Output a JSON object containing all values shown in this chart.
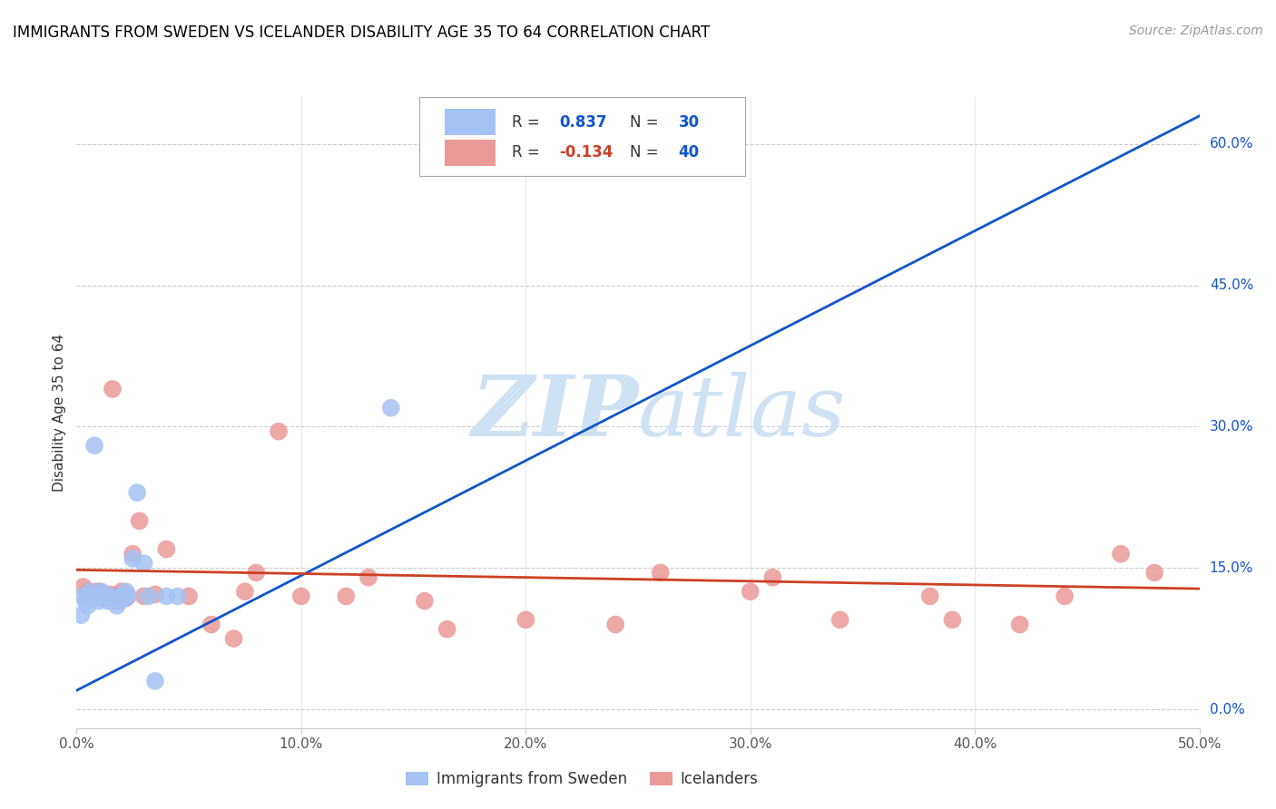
{
  "title": "IMMIGRANTS FROM SWEDEN VS ICELANDER DISABILITY AGE 35 TO 64 CORRELATION CHART",
  "source": "Source: ZipAtlas.com",
  "ylabel": "Disability Age 35 to 64",
  "xlim": [
    0.0,
    0.5
  ],
  "ylim": [
    -0.02,
    0.65
  ],
  "xticks": [
    0.0,
    0.1,
    0.2,
    0.3,
    0.4,
    0.5
  ],
  "xticklabels": [
    "0.0%",
    "10.0%",
    "20.0%",
    "30.0%",
    "40.0%",
    "50.0%"
  ],
  "yticks_right": [
    0.0,
    0.15,
    0.3,
    0.45,
    0.6
  ],
  "yticklabels_right": [
    "0.0%",
    "15.0%",
    "30.0%",
    "45.0%",
    "60.0%"
  ],
  "blue_R": 0.837,
  "blue_N": 30,
  "pink_R": -0.134,
  "pink_N": 40,
  "blue_color": "#a4c2f4",
  "pink_color": "#ea9999",
  "blue_line_color": "#1155cc",
  "pink_line_color": "#cc4125",
  "background_color": "#ffffff",
  "grid_color": "#cccccc",
  "title_color": "#000000",
  "source_color": "#999999",
  "watermark_zip": "ZIP",
  "watermark_atlas": "atlas",
  "watermark_color": "#cfe2f3",
  "blue_scatter_x": [
    0.002,
    0.003,
    0.004,
    0.005,
    0.006,
    0.007,
    0.008,
    0.009,
    0.01,
    0.011,
    0.012,
    0.013,
    0.014,
    0.015,
    0.016,
    0.017,
    0.018,
    0.019,
    0.02,
    0.021,
    0.022,
    0.023,
    0.025,
    0.027,
    0.03,
    0.032,
    0.035,
    0.04,
    0.045,
    0.14
  ],
  "blue_scatter_y": [
    0.1,
    0.12,
    0.115,
    0.11,
    0.125,
    0.12,
    0.28,
    0.12,
    0.115,
    0.125,
    0.12,
    0.118,
    0.115,
    0.12,
    0.118,
    0.115,
    0.11,
    0.115,
    0.12,
    0.118,
    0.125,
    0.12,
    0.16,
    0.23,
    0.155,
    0.12,
    0.03,
    0.12,
    0.12,
    0.32
  ],
  "pink_scatter_x": [
    0.003,
    0.005,
    0.007,
    0.008,
    0.01,
    0.012,
    0.013,
    0.015,
    0.016,
    0.018,
    0.02,
    0.022,
    0.025,
    0.028,
    0.03,
    0.035,
    0.04,
    0.05,
    0.06,
    0.07,
    0.075,
    0.08,
    0.09,
    0.1,
    0.12,
    0.13,
    0.155,
    0.165,
    0.2,
    0.24,
    0.26,
    0.3,
    0.31,
    0.34,
    0.38,
    0.39,
    0.42,
    0.44,
    0.465,
    0.48
  ],
  "pink_scatter_y": [
    0.13,
    0.125,
    0.12,
    0.125,
    0.125,
    0.118,
    0.12,
    0.122,
    0.34,
    0.12,
    0.125,
    0.118,
    0.165,
    0.2,
    0.12,
    0.122,
    0.17,
    0.12,
    0.09,
    0.075,
    0.125,
    0.145,
    0.295,
    0.12,
    0.12,
    0.14,
    0.115,
    0.085,
    0.095,
    0.09,
    0.145,
    0.125,
    0.14,
    0.095,
    0.12,
    0.095,
    0.09,
    0.12,
    0.165,
    0.145
  ],
  "blue_trend_x": [
    0.0,
    0.5
  ],
  "blue_trend_y": [
    0.02,
    0.63
  ],
  "pink_trend_x": [
    0.0,
    0.5
  ],
  "pink_trend_y": [
    0.148,
    0.128
  ],
  "legend_label_blue": "Immigrants from Sweden",
  "legend_label_pink": "Icelanders"
}
